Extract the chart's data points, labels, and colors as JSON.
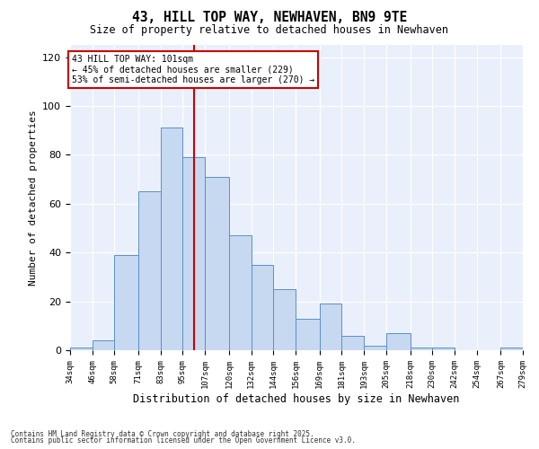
{
  "title": "43, HILL TOP WAY, NEWHAVEN, BN9 9TE",
  "subtitle": "Size of property relative to detached houses in Newhaven",
  "xlabel": "Distribution of detached houses by size in Newhaven",
  "ylabel": "Number of detached properties",
  "footnote1": "Contains HM Land Registry data © Crown copyright and database right 2025.",
  "footnote2": "Contains public sector information licensed under the Open Government Licence v3.0.",
  "annotation_line1": "43 HILL TOP WAY: 101sqm",
  "annotation_line2": "← 45% of detached houses are smaller (229)",
  "annotation_line3": "53% of semi-detached houses are larger (270) →",
  "property_size": 101,
  "bin_edges": [
    34,
    46,
    58,
    71,
    83,
    95,
    107,
    120,
    132,
    144,
    156,
    169,
    181,
    193,
    205,
    218,
    230,
    242,
    254,
    267,
    279
  ],
  "bin_counts": [
    1,
    4,
    39,
    65,
    91,
    79,
    71,
    47,
    35,
    25,
    13,
    19,
    6,
    2,
    7,
    1,
    1,
    0,
    0,
    1
  ],
  "bar_color": "#c6d9f1",
  "bar_edge_color": "#5b8fc9",
  "vline_color": "#cc0000",
  "vline_x": 101,
  "ylim": [
    0,
    125
  ],
  "yticks": [
    0,
    20,
    40,
    60,
    80,
    100,
    120
  ],
  "bg_color": "#eaf0fb",
  "plot_bg_color": "#eaf0fb",
  "grid_color": "#ffffff",
  "annotation_box_color": "#ffffff",
  "annotation_box_edge": "#cc0000",
  "fig_bg_color": "#ffffff"
}
